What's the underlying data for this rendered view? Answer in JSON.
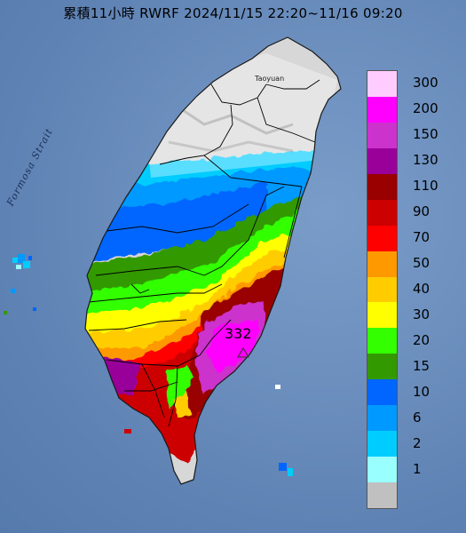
{
  "title": "累積11小時 RWRF 2024/11/15 22:20~11/16 09:20",
  "labels": {
    "strait": "Formosa Strait",
    "taoyuan": "Taoyuan",
    "max_value": "332"
  },
  "legend": [
    {
      "label": "300",
      "color": "#ffccff"
    },
    {
      "label": "200",
      "color": "#ff00ff"
    },
    {
      "label": "150",
      "color": "#cc33cc"
    },
    {
      "label": "130",
      "color": "#990099"
    },
    {
      "label": "110",
      "color": "#990000"
    },
    {
      "label": "90",
      "color": "#cc0000"
    },
    {
      "label": "70",
      "color": "#ff0000"
    },
    {
      "label": "50",
      "color": "#ff9900"
    },
    {
      "label": "40",
      "color": "#ffcc00"
    },
    {
      "label": "30",
      "color": "#ffff00"
    },
    {
      "label": "20",
      "color": "#33ff00"
    },
    {
      "label": "15",
      "color": "#339900"
    },
    {
      "label": "10",
      "color": "#0066ff"
    },
    {
      "label": "6",
      "color": "#0099ff"
    },
    {
      "label": "2",
      "color": "#00ccff"
    },
    {
      "label": "1",
      "color": "#99ffff"
    },
    {
      "label": "",
      "color": "#c0c0c0"
    }
  ]
}
